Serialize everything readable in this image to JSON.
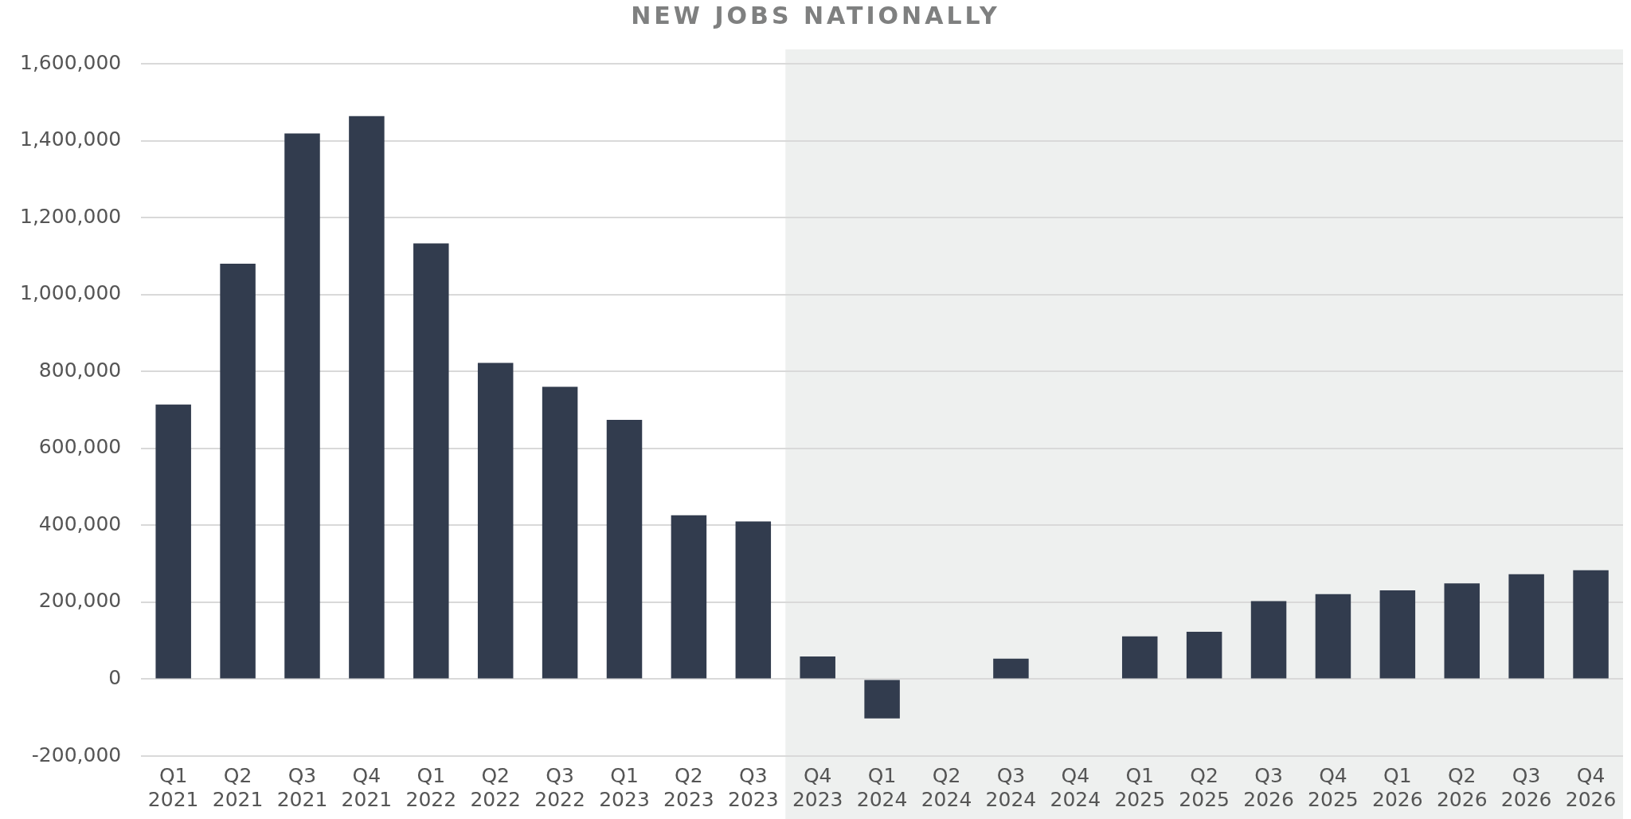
{
  "chart_data": {
    "type": "bar",
    "title": "NEW JOBS NATIONALLY",
    "categories": [
      "Q1 2021",
      "Q2 2021",
      "Q3 2021",
      "Q4 2021",
      "Q1 2022",
      "Q2 2022",
      "Q3 2022",
      "Q1 2023",
      "Q2 2023",
      "Q3 2023",
      "Q4 2023",
      "Q1 2024",
      "Q2 2024",
      "Q3 2024",
      "Q4 2024",
      "Q1 2025",
      "Q2 2025",
      "Q3 2026",
      "Q4 2025",
      "Q1 2026",
      "Q2 2026",
      "Q3 2026",
      "Q4 2026"
    ],
    "values": [
      714000,
      1080000,
      1419000,
      1464000,
      1133000,
      822000,
      760000,
      674000,
      426000,
      410000,
      59000,
      -102000,
      0,
      53000,
      0,
      111000,
      123000,
      203000,
      221000,
      231000,
      249000,
      273000,
      283000
    ],
    "color": "#323c4e",
    "ylim": [
      -200000,
      1600000
    ],
    "yticks": [
      {
        "value": -200000,
        "label": "-200,000"
      },
      {
        "value": 0,
        "label": "0"
      },
      {
        "value": 200000,
        "label": "200,000"
      },
      {
        "value": 400000,
        "label": "400,000"
      },
      {
        "value": 600000,
        "label": "600,000"
      },
      {
        "value": 800000,
        "label": "800,000"
      },
      {
        "value": 1000000,
        "label": "1,000,000"
      },
      {
        "value": 1200000,
        "label": "1,200,000"
      },
      {
        "value": 1400000,
        "label": "1,400,000"
      },
      {
        "value": 1600000,
        "label": "1,600,000"
      }
    ],
    "grid": "y",
    "bands": [
      {
        "axis": "x",
        "from": "Q4 2023",
        "to": "Q4 2026",
        "color": "#eef0ef"
      }
    ]
  }
}
